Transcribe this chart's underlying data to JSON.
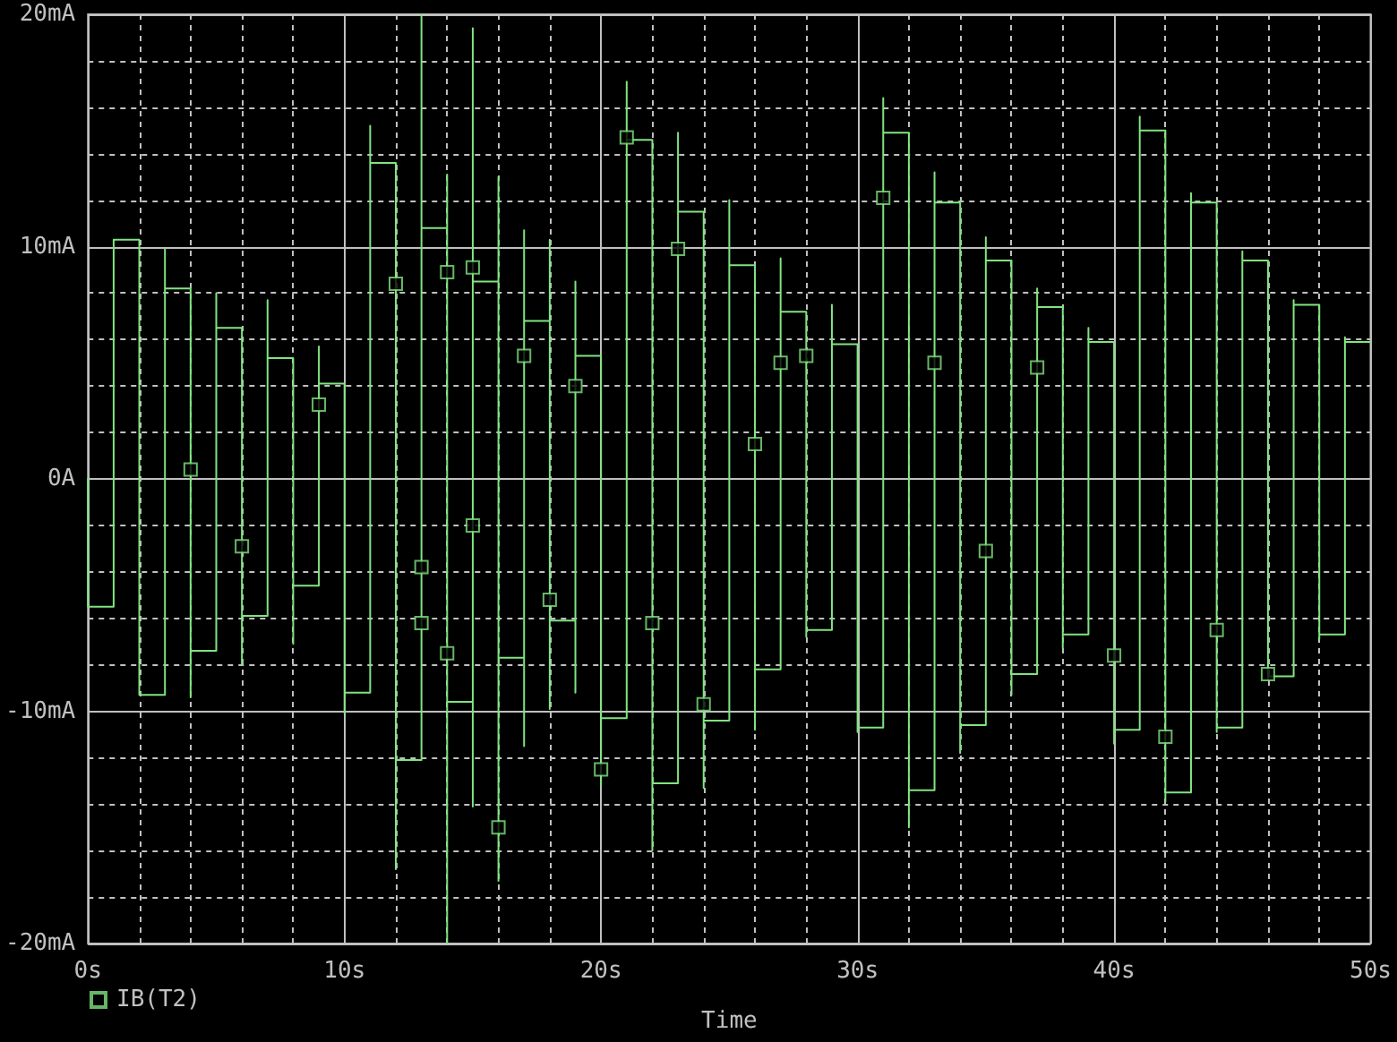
{
  "chart_data": {
    "type": "line",
    "xlabel": "Time",
    "xlim": [
      0,
      50
    ],
    "xticks": [
      {
        "value": 0,
        "label": "0s"
      },
      {
        "value": 2,
        "label": null
      },
      {
        "value": 4,
        "label": null
      },
      {
        "value": 6,
        "label": null
      },
      {
        "value": 8,
        "label": null
      },
      {
        "value": 10,
        "label": "10s"
      },
      {
        "value": 12,
        "label": null
      },
      {
        "value": 14,
        "label": null
      },
      {
        "value": 16,
        "label": null
      },
      {
        "value": 18,
        "label": null
      },
      {
        "value": 20,
        "label": "20s"
      },
      {
        "value": 22,
        "label": null
      },
      {
        "value": 24,
        "label": null
      },
      {
        "value": 26,
        "label": null
      },
      {
        "value": 28,
        "label": null
      },
      {
        "value": 30,
        "label": "30s"
      },
      {
        "value": 32,
        "label": null
      },
      {
        "value": 34,
        "label": null
      },
      {
        "value": 36,
        "label": null
      },
      {
        "value": 38,
        "label": null
      },
      {
        "value": 40,
        "label": "40s"
      },
      {
        "value": 42,
        "label": null
      },
      {
        "value": 44,
        "label": null
      },
      {
        "value": 46,
        "label": null
      },
      {
        "value": 48,
        "label": null
      },
      {
        "value": 50,
        "label": "50s"
      }
    ],
    "ylim": [
      -20,
      20
    ],
    "yticks": [
      {
        "value": -20,
        "label": "-20mA"
      },
      {
        "value": -18,
        "label": null
      },
      {
        "value": -16,
        "label": null
      },
      {
        "value": -14,
        "label": null
      },
      {
        "value": -12,
        "label": null
      },
      {
        "value": -10,
        "label": "-10mA"
      },
      {
        "value": -8,
        "label": null
      },
      {
        "value": -6,
        "label": null
      },
      {
        "value": -4,
        "label": null
      },
      {
        "value": -2,
        "label": null
      },
      {
        "value": 0,
        "label": "0A"
      },
      {
        "value": 2,
        "label": null
      },
      {
        "value": 4,
        "label": null
      },
      {
        "value": 6,
        "label": null
      },
      {
        "value": 8,
        "label": null
      },
      {
        "value": 10,
        "label": "10mA"
      },
      {
        "value": 12,
        "label": null
      },
      {
        "value": 14,
        "label": null
      },
      {
        "value": 16,
        "label": null
      },
      {
        "value": 18,
        "label": null
      },
      {
        "value": 20,
        "label": "20mA"
      }
    ],
    "grid": true,
    "legend": "bottom left",
    "series": [
      {
        "color": "#80e480",
        "x": [
          0,
          0,
          1,
          1,
          2,
          2,
          3,
          3,
          3,
          4,
          4,
          4,
          5,
          5,
          5,
          6,
          6,
          6,
          7,
          7,
          7,
          8,
          8,
          8,
          9,
          9,
          9,
          10,
          10,
          10,
          11,
          11,
          11,
          12,
          12,
          12,
          13,
          13,
          13,
          14,
          14,
          14,
          14,
          15,
          15,
          15,
          15,
          16,
          16,
          16,
          16,
          17,
          17,
          17,
          17,
          18,
          18,
          18,
          18,
          19,
          19,
          19,
          19,
          20,
          20,
          20,
          21,
          21,
          21,
          22,
          22,
          22,
          23,
          23,
          23,
          24,
          24,
          24,
          25,
          25,
          25,
          26,
          26,
          26,
          27,
          27,
          27,
          28,
          28,
          28,
          29,
          29,
          29,
          30,
          30,
          30,
          31,
          31,
          31,
          32,
          32,
          32,
          33,
          33,
          33,
          34,
          34,
          34,
          35,
          35,
          35,
          36,
          36,
          36,
          37,
          37,
          37,
          38,
          38,
          38,
          39,
          39,
          39,
          40,
          40,
          40,
          41,
          41,
          41,
          42,
          42,
          42,
          43,
          43,
          43,
          44,
          44,
          44,
          45,
          45,
          45,
          46,
          46,
          46,
          47,
          47,
          47,
          48,
          48,
          48,
          49,
          49,
          49,
          50
        ],
        "values": [
          0,
          -5.5,
          -5.5,
          10.3,
          10.3,
          -9.3,
          -9.3,
          9.9,
          8.2,
          8.2,
          -9.4,
          -7.4,
          -7.4,
          8.0,
          6.5,
          6.5,
          -8.0,
          -5.9,
          -5.9,
          7.7,
          5.2,
          5.2,
          -7.1,
          -4.6,
          -4.6,
          5.7,
          4.1,
          4.1,
          -10.1,
          -9.2,
          -9.2,
          15.2,
          13.6,
          13.6,
          -16.8,
          -12.1,
          -12.1,
          20,
          10.8,
          10.8,
          13.1,
          -20,
          -9.6,
          -9.6,
          -14.1,
          19.4,
          8.5,
          8.5,
          13.0,
          -17.3,
          -7.7,
          -7.7,
          -11.5,
          10.7,
          6.8,
          6.8,
          10.3,
          -9.9,
          -6.1,
          -6.1,
          -9.2,
          8.5,
          5.3,
          5.3,
          -13.2,
          -10.3,
          -10.3,
          17.1,
          14.6,
          14.6,
          -16.0,
          -13.1,
          -13.1,
          14.9,
          11.5,
          11.5,
          -13.3,
          -10.4,
          -10.4,
          12.0,
          9.2,
          9.2,
          -10.8,
          -8.2,
          -8.2,
          9.5,
          7.2,
          7.2,
          -6.8,
          -6.5,
          -6.5,
          7.5,
          5.8,
          5.8,
          -10.9,
          -10.7,
          -10.7,
          16.4,
          14.9,
          14.9,
          -15.0,
          -13.4,
          -13.4,
          13.2,
          11.9,
          11.9,
          -11.8,
          -10.6,
          -10.6,
          10.4,
          9.4,
          9.4,
          -9.3,
          -8.4,
          -8.4,
          8.2,
          7.4,
          7.4,
          -7.3,
          -6.7,
          -6.7,
          6.5,
          5.9,
          5.9,
          -11.4,
          -10.8,
          -10.8,
          15.6,
          15.0,
          15.0,
          -13.9,
          -13.5,
          -13.5,
          12.3,
          11.9,
          11.9,
          -10.9,
          -10.7,
          -10.7,
          9.8,
          9.4,
          9.4,
          -8.6,
          -8.5,
          -8.5,
          7.7,
          7.5,
          7.5,
          -6.9,
          -6.7,
          -6.7,
          6.1,
          5.9,
          5.9
        ]
      },
      {
        "type": "scatter",
        "name": "IB(T2)",
        "color": "#80e480",
        "marker": "square",
        "x": [
          4,
          6,
          9,
          12,
          13,
          13,
          14,
          14,
          15,
          15,
          16,
          17,
          18,
          19,
          20,
          21,
          22,
          23,
          24,
          26,
          27,
          28,
          31,
          33,
          35,
          37,
          40,
          42,
          44,
          46
        ],
        "values": [
          0.4,
          -2.9,
          3.2,
          8.4,
          -3.8,
          -6.2,
          8.9,
          -7.5,
          9.1,
          -2.0,
          -15.0,
          5.3,
          -5.2,
          4.0,
          -12.5,
          14.7,
          -6.2,
          9.9,
          -9.7,
          1.5,
          5.0,
          5.3,
          12.1,
          5.0,
          -3.1,
          4.8,
          -7.6,
          -11.1,
          -6.5,
          -8.4
        ]
      }
    ]
  }
}
